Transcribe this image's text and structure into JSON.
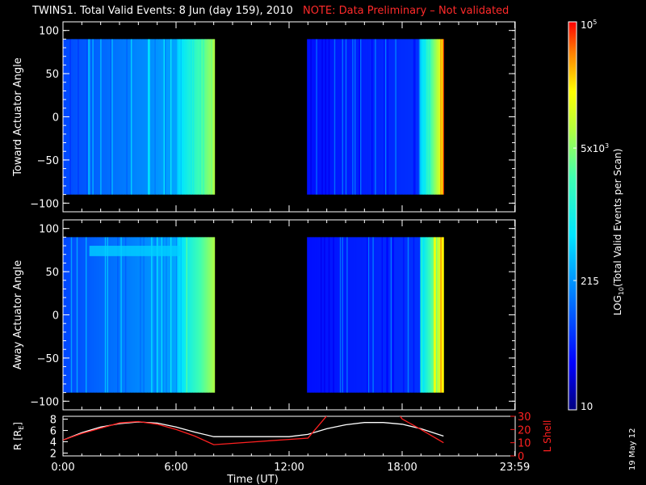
{
  "header": {
    "title": "TWINS1. Total Valid Events:  8 Jun (day 159), 2010",
    "note": "NOTE: Data Preliminary – Not validated"
  },
  "side_date": "19 May 12",
  "colors": {
    "background": "#000000",
    "axes": "#ffffff",
    "note": "#ff2a2a",
    "r_line": "#ffffff",
    "lshell_line": "#ff2020"
  },
  "chart_data": [
    {
      "type": "heatmap",
      "ylabel": "Toward Actuator Angle",
      "ylim": [
        -110,
        110
      ],
      "yticks": [
        "100",
        "50",
        "0",
        "−50",
        "−100"
      ],
      "ytick_values": [
        100,
        50,
        0,
        -50,
        -100
      ],
      "angle_range": [
        -90,
        90
      ],
      "x_axis": "time UT hours",
      "xlim": [
        0,
        24
      ],
      "data_blocks": [
        {
          "start": 0.0,
          "end": 8.05
        },
        {
          "start": 12.95,
          "end": 20.2
        }
      ],
      "colorscale": "rainbow-log",
      "description_levels_log": "low counts (blue) early in each block rising to high counts (yellow) at block end"
    },
    {
      "type": "heatmap",
      "ylabel": "Away Actuator Angle",
      "ylim": [
        -110,
        110
      ],
      "yticks": [
        "100",
        "50",
        "0",
        "−50",
        "−100"
      ],
      "ytick_values": [
        100,
        50,
        0,
        -50,
        -100
      ],
      "angle_range": [
        -90,
        90
      ],
      "xlim": [
        0,
        24
      ],
      "data_blocks": [
        {
          "start": 0.0,
          "end": 8.05
        },
        {
          "start": 12.95,
          "end": 20.2
        }
      ],
      "colorscale": "rainbow-log"
    },
    {
      "type": "line",
      "ylabel_left": "R [R",
      "ylabel_left_sub": "E",
      "ylabel_left_end": "]",
      "ylabel_right": "L Shell",
      "ylim_left": [
        1.5,
        8.5
      ],
      "ylim_right": [
        0,
        30
      ],
      "yticks_left": [
        "8",
        "6",
        "4",
        "2"
      ],
      "ytick_left_values": [
        8,
        6,
        4,
        2
      ],
      "yticks_right": [
        "30",
        "20",
        "10",
        "0"
      ],
      "ytick_right_values": [
        30,
        20,
        10,
        0
      ],
      "xlim": [
        0,
        24
      ],
      "xticks": [
        "0:00",
        "6:00",
        "12:00",
        "18:00",
        "23:59"
      ],
      "xtick_values": [
        0,
        6,
        12,
        18,
        23.98
      ],
      "xlabel": "Time (UT)",
      "series": [
        {
          "name": "R",
          "axis": "left",
          "x": [
            0,
            1,
            2,
            3,
            4,
            5,
            6,
            7,
            8,
            9,
            10,
            11,
            12,
            13,
            14,
            15,
            16,
            17,
            18,
            19,
            20.2
          ],
          "y": [
            4.3,
            5.6,
            6.6,
            7.2,
            7.5,
            7.3,
            6.6,
            5.7,
            4.9,
            4.9,
            4.9,
            4.9,
            4.9,
            5.3,
            6.3,
            7.0,
            7.4,
            7.4,
            7.1,
            6.3,
            5.0
          ]
        },
        {
          "name": "L Shell",
          "axis": "right",
          "x": [
            0,
            1,
            2,
            3,
            4,
            5,
            6,
            7,
            8,
            9,
            10,
            11,
            12,
            13,
            14.1,
            17.8,
            18.0,
            19,
            20.2
          ],
          "y": [
            12,
            17,
            21,
            25,
            26,
            24,
            20,
            15,
            8.5,
            9.5,
            10.5,
            11.5,
            12.5,
            13.5,
            32,
            32,
            28,
            20,
            10
          ]
        }
      ]
    }
  ],
  "colorbar": {
    "label": "LOG",
    "label_sub": "10",
    "label_end": "(Total Valid  Events per Scan)",
    "tick_labels": [
      "10",
      "215",
      "5x10",
      "10"
    ],
    "tick_sups": [
      "",
      "",
      "3",
      "5"
    ],
    "tick_values_log": [
      1,
      2.333,
      3.699,
      5
    ],
    "range_log": [
      1,
      5
    ]
  }
}
